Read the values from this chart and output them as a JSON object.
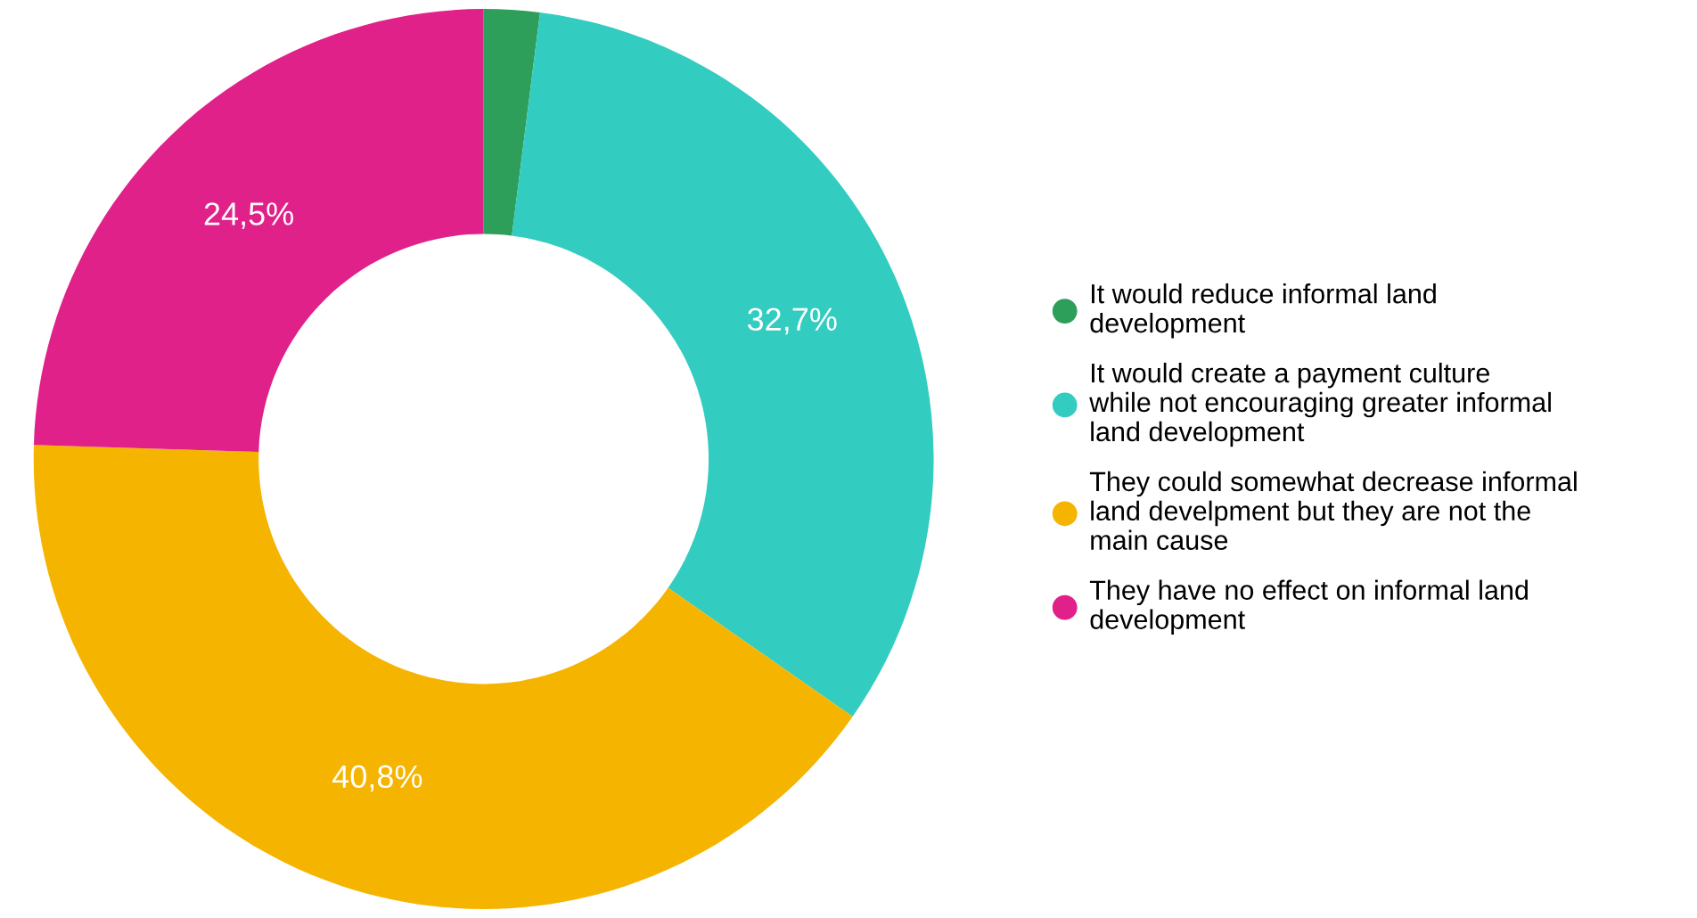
{
  "chart_data": {
    "type": "donut",
    "categories": [
      "It would reduce informal land development",
      "It would create a payment culture while not encouraging greater informal land development",
      "They could somewhat decrease informal land develpment but they are not the main cause",
      "They have no effect on informal land development"
    ],
    "values": [
      2.0,
      32.7,
      40.8,
      24.5
    ],
    "colors": [
      "#2e9e5b",
      "#33ccc0",
      "#f5b400",
      "#e0218a"
    ],
    "value_labels": [
      null,
      "32,7%",
      "40,8%",
      "24,5%"
    ],
    "legend": "right"
  }
}
